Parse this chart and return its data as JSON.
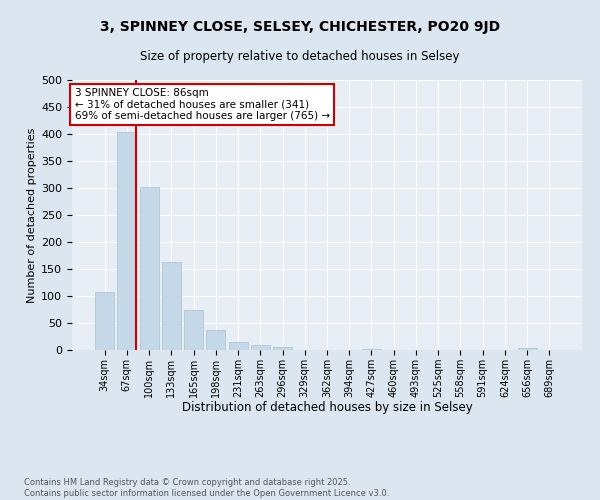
{
  "title_line1": "3, SPINNEY CLOSE, SELSEY, CHICHESTER, PO20 9JD",
  "title_line2": "Size of property relative to detached houses in Selsey",
  "xlabel": "Distribution of detached houses by size in Selsey",
  "ylabel": "Number of detached properties",
  "categories": [
    "34sqm",
    "67sqm",
    "100sqm",
    "133sqm",
    "165sqm",
    "198sqm",
    "231sqm",
    "263sqm",
    "296sqm",
    "329sqm",
    "362sqm",
    "394sqm",
    "427sqm",
    "460sqm",
    "493sqm",
    "525sqm",
    "558sqm",
    "591sqm",
    "624sqm",
    "656sqm",
    "689sqm"
  ],
  "values": [
    107,
    403,
    302,
    163,
    75,
    37,
    15,
    10,
    5,
    0,
    0,
    0,
    2,
    0,
    0,
    0,
    0,
    0,
    0,
    3,
    0
  ],
  "bar_color": "#c5d8e8",
  "bar_edge_color": "#a8c0d0",
  "vline_x_index": 1,
  "vline_color": "#cc0000",
  "annotation_text": "3 SPINNEY CLOSE: 86sqm\n← 31% of detached houses are smaller (341)\n69% of semi-detached houses are larger (765) →",
  "annotation_box_color": "#ffffff",
  "annotation_edge_color": "#cc0000",
  "bg_color": "#dce6f0",
  "plot_bg_color": "#e8eef6",
  "grid_color": "#ffffff",
  "footer_text": "Contains HM Land Registry data © Crown copyright and database right 2025.\nContains public sector information licensed under the Open Government Licence v3.0.",
  "ylim": [
    0,
    500
  ],
  "yticks": [
    0,
    50,
    100,
    150,
    200,
    250,
    300,
    350,
    400,
    450,
    500
  ]
}
